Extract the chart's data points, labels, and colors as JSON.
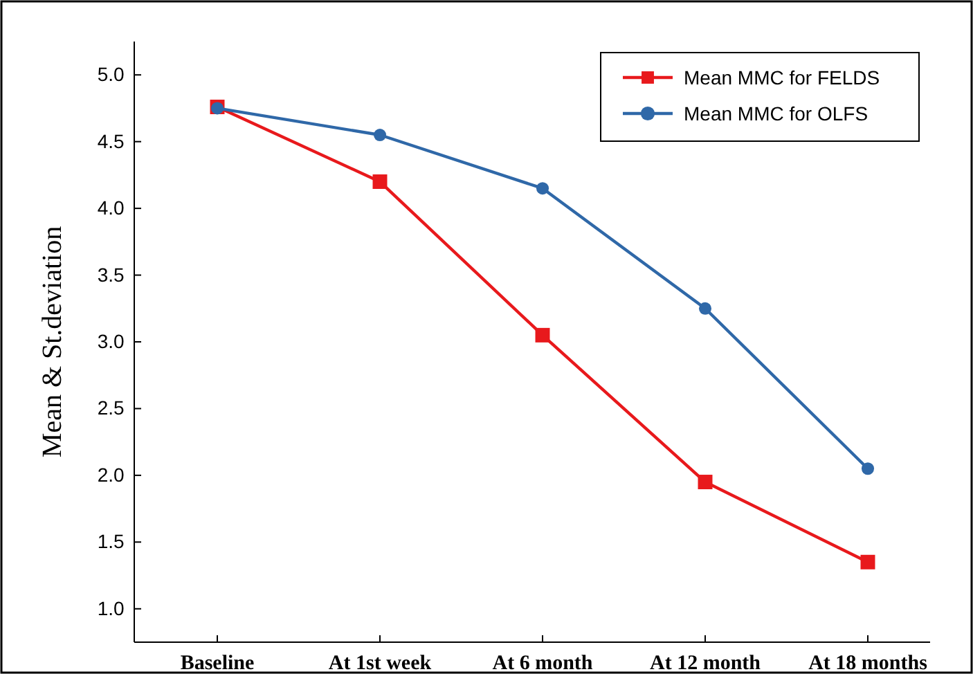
{
  "chart_data": {
    "type": "line",
    "ylabel": "Mean & St.deviation",
    "categories": [
      "Baseline",
      "At 1st week",
      "At 6 month",
      "At 12 month",
      "At 18 months"
    ],
    "series": [
      {
        "name": "Mean MMC for FELDS",
        "color": "#e8191c",
        "marker": "square",
        "values": [
          4.76,
          4.2,
          3.05,
          1.95,
          1.35
        ]
      },
      {
        "name": "Mean MMC for OLFS",
        "color": "#2f68a8",
        "marker": "circle",
        "values": [
          4.75,
          4.55,
          4.15,
          3.25,
          2.05
        ]
      }
    ],
    "ylim": [
      0.75,
      5.25
    ],
    "yticks": [
      {
        "value": 1,
        "label": "1.0"
      },
      {
        "value": 1.5,
        "label": "1.5"
      },
      {
        "value": 2,
        "label": "2.0"
      },
      {
        "value": 2.5,
        "label": "2.5"
      },
      {
        "value": 3,
        "label": "3.0"
      },
      {
        "value": 3.5,
        "label": "3.5"
      },
      {
        "value": 4,
        "label": "4.0"
      },
      {
        "value": 4.5,
        "label": "4.5"
      },
      {
        "value": 5,
        "label": "5.0"
      }
    ],
    "grid": false,
    "legend": "top right",
    "line_style": "solid"
  }
}
